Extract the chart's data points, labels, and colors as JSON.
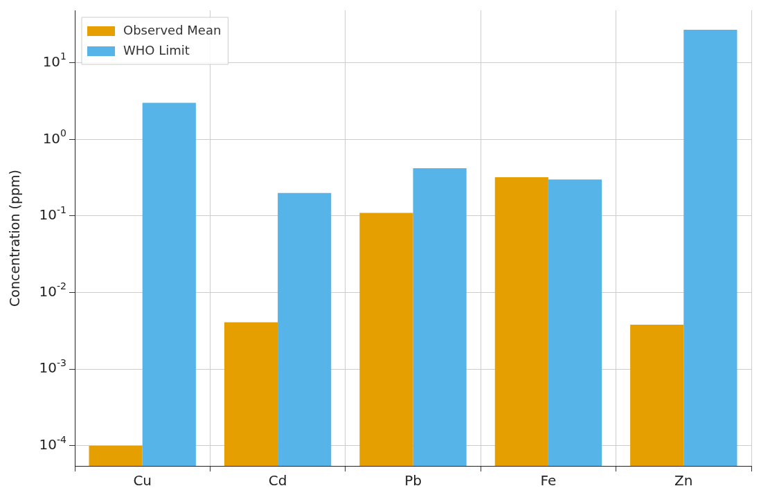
{
  "chart_data": {
    "type": "bar",
    "ylabel": "Concentration (ppm)",
    "categories": [
      "Cu",
      "Cd",
      "Pb",
      "Fe",
      "Zn"
    ],
    "series": [
      {
        "name": "Observed Mean",
        "color": "#e69f00",
        "values": [
          0.0001,
          0.0041,
          0.11,
          0.32,
          0.0038
        ]
      },
      {
        "name": "WHO Limit",
        "color": "#56b4e9",
        "values": [
          3,
          0.2,
          0.42,
          0.3,
          27
        ]
      }
    ],
    "log": "y",
    "ylim": [
      5.46e-05,
      48.3
    ],
    "yticks": [
      {
        "value": 0.0001,
        "label": "10$^{-4}$"
      },
      {
        "value": 0.001,
        "label": "10$^{-3}$"
      },
      {
        "value": 0.01,
        "label": "10$^{-2}$"
      },
      {
        "value": 0.1,
        "label": "10$^{-1}$"
      },
      {
        "value": 1,
        "label": "10$^{0}$"
      },
      {
        "value": 10,
        "label": "10$^{1}$"
      }
    ],
    "grid": true,
    "legend": "top left"
  }
}
